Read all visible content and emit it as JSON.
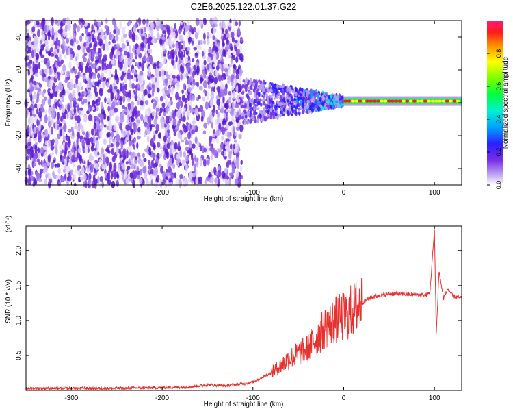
{
  "title": "C2E6.2025.122.01.37.G22",
  "chart_data": [
    {
      "type": "heatmap",
      "xlabel": "Height of straight line (km)",
      "ylabel": "Frequency (Hz)",
      "xlim": [
        -350,
        130
      ],
      "ylim": [
        -50,
        50
      ],
      "xticks": [
        -300,
        -200,
        -100,
        0,
        100
      ],
      "yticks": [
        -40,
        -20,
        0,
        20,
        40
      ],
      "colorbar": {
        "label": "Normalized spectral amplitude",
        "range": [
          0,
          1
        ],
        "ticks": [
          "0.0",
          "0.2",
          "0.4",
          "0.6",
          "0.8"
        ],
        "colormap": "rainbow"
      },
      "regions": [
        {
          "x_range": [
            -350,
            -112
          ],
          "description_level": "noise",
          "amplitude": 0.2
        },
        {
          "x_range": [
            -112,
            0
          ],
          "amplitude": 0.4
        },
        {
          "x_range": [
            0,
            130
          ],
          "center_freq": 1,
          "amplitude": 0.95
        }
      ]
    },
    {
      "type": "line",
      "xlabel": "Height of straight line (km)",
      "ylabel": "SNR (10 * v/v)",
      "y_multiplier": "(x10⁴)",
      "xlim": [
        -350,
        130
      ],
      "ylim": [
        0,
        2.35
      ],
      "xticks": [
        -300,
        -200,
        -100,
        0,
        100
      ],
      "yticks": [
        "0.5",
        "1.0",
        "1.5",
        "2.0"
      ],
      "series": [
        {
          "color": "#e8312f",
          "x": [
            -350,
            -300,
            -250,
            -200,
            -170,
            -150,
            -130,
            -110,
            -100,
            -80,
            -60,
            -40,
            -30,
            -20,
            -10,
            0,
            10,
            20,
            30,
            40,
            50,
            60,
            70,
            80,
            90,
            95,
            100,
            102,
            105,
            110,
            115,
            120,
            130
          ],
          "y": [
            0.03,
            0.03,
            0.03,
            0.04,
            0.05,
            0.08,
            0.07,
            0.1,
            0.12,
            0.25,
            0.45,
            0.6,
            0.75,
            0.9,
            1.0,
            1.05,
            1.15,
            1.25,
            1.33,
            1.36,
            1.38,
            1.38,
            1.37,
            1.37,
            1.36,
            1.4,
            2.3,
            0.8,
            1.7,
            1.32,
            1.45,
            1.35,
            1.32
          ]
        }
      ]
    }
  ]
}
